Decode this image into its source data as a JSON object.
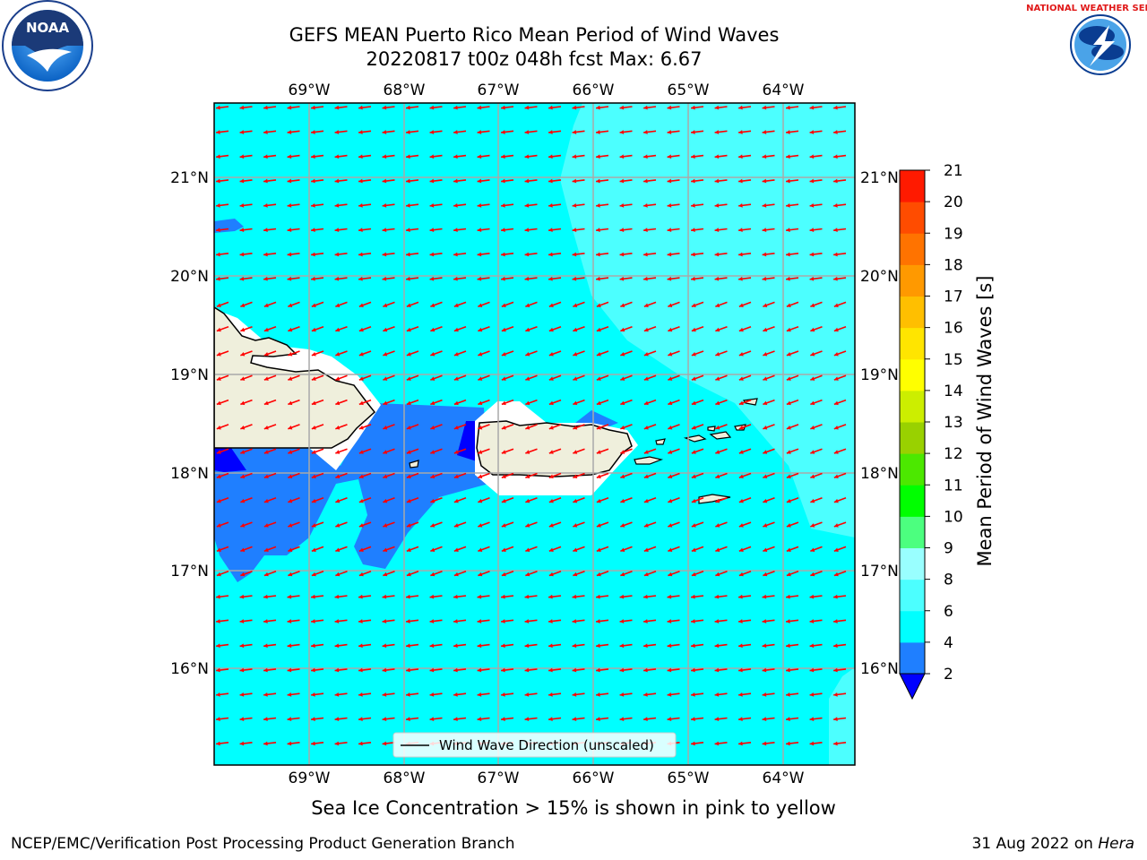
{
  "header": {
    "title_line1": "GEFS MEAN Puerto Rico Mean Period of Wind Waves",
    "title_line2": "20220817 t00z 048h fcst   Max: 6.67"
  },
  "map": {
    "lon_labels": [
      "69°W",
      "68°W",
      "67°W",
      "66°W",
      "65°W",
      "64°W"
    ],
    "lat_labels": [
      "21°N",
      "20°N",
      "19°N",
      "18°N",
      "17°N",
      "16°N"
    ],
    "legend_label": "Wind Wave Direction (unscaled)",
    "ocean_color": "#00ffff",
    "arrow_color": "#ff0000",
    "land_color": "#efefdc"
  },
  "colorbar": {
    "title": "Mean Period of Wind Waves [s]",
    "ticks": [
      "2",
      "4",
      "6",
      "8",
      "9",
      "10",
      "11",
      "12",
      "13",
      "14",
      "15",
      "16",
      "17",
      "18",
      "19",
      "20",
      "21"
    ],
    "colors": [
      "#1f7fff",
      "#00ffff",
      "#4cffff",
      "#99ffff",
      "#4cff7f",
      "#00ff00",
      "#4ce800",
      "#99d100",
      "#ccee00",
      "#ffff00",
      "#ffe500",
      "#ffbf00",
      "#ff9900",
      "#ff7300",
      "#ff4c00",
      "#ff1a00"
    ],
    "under_color": "#0000ff"
  },
  "footer": {
    "note": "Sea Ice Concentration > 15% is shown in pink to yellow",
    "credit_left": "NCEP/EMC/Verification Post Processing Product Generation Branch",
    "credit_date": "31 Aug 2022 on ",
    "credit_host": "Hera"
  },
  "logos": {
    "noaa_text": "NOAA",
    "nws_text": "NATIONAL WEATHER SERVICE"
  }
}
